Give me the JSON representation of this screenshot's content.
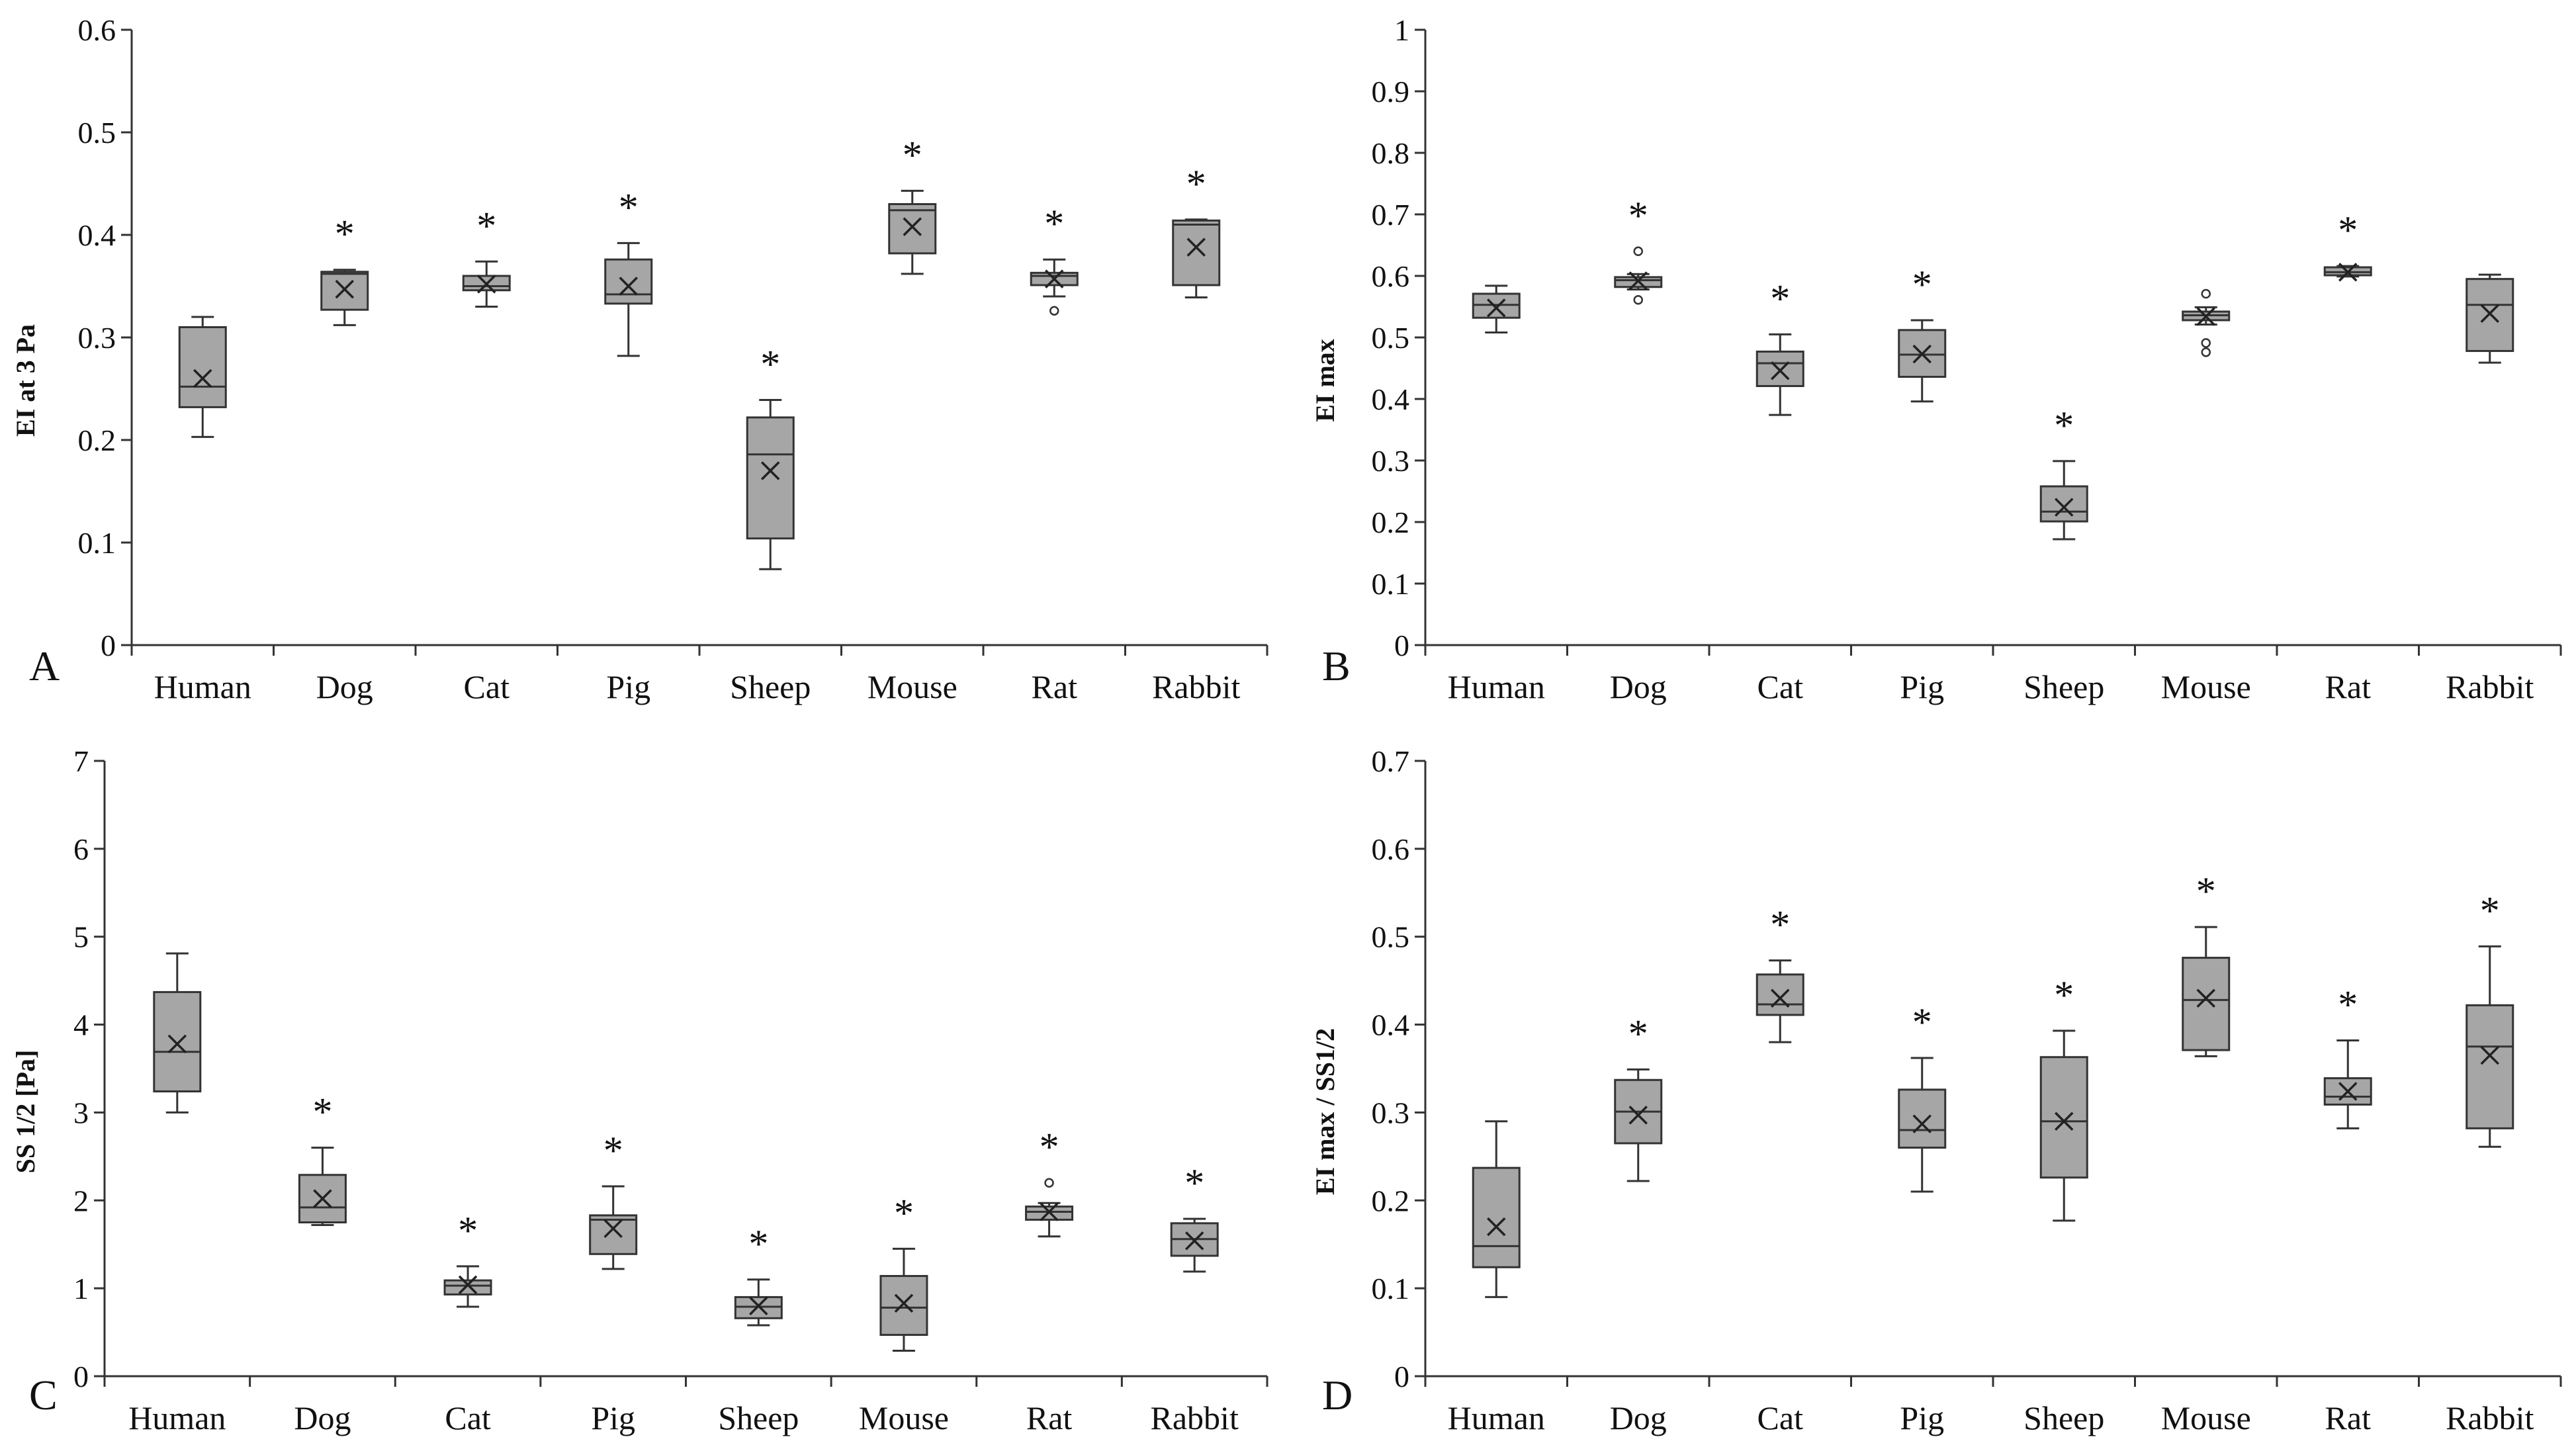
{
  "chart_data": [
    {
      "type": "box",
      "panel": "A",
      "ylabel": "EI at 3 Pa",
      "ylim": [
        0,
        0.6
      ],
      "yticks": [
        0,
        0.1,
        0.2,
        0.3,
        0.4,
        0.5,
        0.6
      ],
      "ytick_labels": [
        "0",
        "0.1",
        "0.2",
        "0.3",
        "0.4",
        "0.5",
        "0.6"
      ],
      "categories": [
        "Human",
        "Dog",
        "Cat",
        "Pig",
        "Sheep",
        "Mouse",
        "Rat",
        "Rabbit"
      ],
      "boxes": [
        {
          "min": 0.203,
          "q1": 0.232,
          "median": 0.252,
          "q3": 0.31,
          "max": 0.32,
          "mean": 0.26,
          "outliers": [],
          "significant": false
        },
        {
          "min": 0.312,
          "q1": 0.327,
          "median": 0.362,
          "q3": 0.364,
          "max": 0.366,
          "mean": 0.347,
          "outliers": [],
          "significant": true
        },
        {
          "min": 0.33,
          "q1": 0.346,
          "median": 0.35,
          "q3": 0.36,
          "max": 0.374,
          "mean": 0.352,
          "outliers": [],
          "significant": true
        },
        {
          "min": 0.282,
          "q1": 0.333,
          "median": 0.342,
          "q3": 0.376,
          "max": 0.392,
          "mean": 0.35,
          "outliers": [],
          "significant": true
        },
        {
          "min": 0.074,
          "q1": 0.104,
          "median": 0.186,
          "q3": 0.222,
          "max": 0.239,
          "mean": 0.17,
          "outliers": [],
          "significant": true
        },
        {
          "min": 0.362,
          "q1": 0.382,
          "median": 0.424,
          "q3": 0.43,
          "max": 0.443,
          "mean": 0.408,
          "outliers": [],
          "significant": true
        },
        {
          "min": 0.34,
          "q1": 0.351,
          "median": 0.36,
          "q3": 0.363,
          "max": 0.376,
          "mean": 0.357,
          "outliers": [
            0.326
          ],
          "significant": true
        },
        {
          "min": 0.339,
          "q1": 0.351,
          "median": 0.41,
          "q3": 0.414,
          "max": 0.415,
          "mean": 0.388,
          "outliers": [],
          "significant": true
        }
      ]
    },
    {
      "type": "box",
      "panel": "B",
      "ylabel": "EI max",
      "ylim": [
        0,
        1
      ],
      "yticks": [
        0,
        0.1,
        0.2,
        0.3,
        0.4,
        0.5,
        0.6,
        0.7,
        0.8,
        0.9,
        1
      ],
      "ytick_labels": [
        "0",
        "0.1",
        "0.2",
        "0.3",
        "0.4",
        "0.5",
        "0.6",
        "0.7",
        "0.8",
        "0.9",
        "1"
      ],
      "categories": [
        "Human",
        "Dog",
        "Cat",
        "Pig",
        "Sheep",
        "Mouse",
        "Rat",
        "Rabbit"
      ],
      "boxes": [
        {
          "min": 0.508,
          "q1": 0.532,
          "median": 0.553,
          "q3": 0.571,
          "max": 0.584,
          "mean": 0.548,
          "outliers": [],
          "significant": false
        },
        {
          "min": 0.578,
          "q1": 0.582,
          "median": 0.593,
          "q3": 0.598,
          "max": 0.603,
          "mean": 0.592,
          "outliers": [
            0.64,
            0.561
          ],
          "significant": true
        },
        {
          "min": 0.374,
          "q1": 0.421,
          "median": 0.458,
          "q3": 0.477,
          "max": 0.505,
          "mean": 0.446,
          "outliers": [],
          "significant": true
        },
        {
          "min": 0.396,
          "q1": 0.436,
          "median": 0.472,
          "q3": 0.512,
          "max": 0.528,
          "mean": 0.473,
          "outliers": [],
          "significant": true
        },
        {
          "min": 0.172,
          "q1": 0.201,
          "median": 0.217,
          "q3": 0.258,
          "max": 0.299,
          "mean": 0.224,
          "outliers": [],
          "significant": true
        },
        {
          "min": 0.521,
          "q1": 0.528,
          "median": 0.536,
          "q3": 0.542,
          "max": 0.549,
          "mean": 0.534,
          "outliers": [
            0.571,
            0.491,
            0.476
          ],
          "significant": false
        },
        {
          "min": 0.599,
          "q1": 0.601,
          "median": 0.606,
          "q3": 0.614,
          "max": 0.616,
          "mean": 0.606,
          "outliers": [],
          "significant": true
        },
        {
          "min": 0.459,
          "q1": 0.478,
          "median": 0.553,
          "q3": 0.595,
          "max": 0.602,
          "mean": 0.539,
          "outliers": [],
          "significant": false
        }
      ]
    },
    {
      "type": "box",
      "panel": "C",
      "ylabel": "SS 1/2 [Pa]",
      "ylim": [
        0,
        7
      ],
      "yticks": [
        0,
        1,
        2,
        3,
        4,
        5,
        6,
        7
      ],
      "ytick_labels": [
        "0",
        "1",
        "2",
        "3",
        "4",
        "5",
        "6",
        "7"
      ],
      "categories": [
        "Human",
        "Dog",
        "Cat",
        "Pig",
        "Sheep",
        "Mouse",
        "Rat",
        "Rabbit"
      ],
      "boxes": [
        {
          "min": 3.0,
          "q1": 3.24,
          "median": 3.69,
          "q3": 4.37,
          "max": 4.81,
          "mean": 3.78,
          "outliers": [],
          "significant": false
        },
        {
          "min": 1.72,
          "q1": 1.75,
          "median": 1.92,
          "q3": 2.29,
          "max": 2.6,
          "mean": 2.02,
          "outliers": [],
          "significant": true
        },
        {
          "min": 0.79,
          "q1": 0.93,
          "median": 1.03,
          "q3": 1.09,
          "max": 1.25,
          "mean": 1.04,
          "outliers": [],
          "significant": true
        },
        {
          "min": 1.22,
          "q1": 1.39,
          "median": 1.78,
          "q3": 1.83,
          "max": 2.16,
          "mean": 1.68,
          "outliers": [],
          "significant": true
        },
        {
          "min": 0.58,
          "q1": 0.66,
          "median": 0.79,
          "q3": 0.9,
          "max": 1.1,
          "mean": 0.8,
          "outliers": [],
          "significant": true
        },
        {
          "min": 0.29,
          "q1": 0.47,
          "median": 0.78,
          "q3": 1.14,
          "max": 1.45,
          "mean": 0.83,
          "outliers": [],
          "significant": true
        },
        {
          "min": 1.59,
          "q1": 1.78,
          "median": 1.87,
          "q3": 1.93,
          "max": 1.97,
          "mean": 1.87,
          "outliers": [
            2.2
          ],
          "significant": true
        },
        {
          "min": 1.19,
          "q1": 1.37,
          "median": 1.56,
          "q3": 1.74,
          "max": 1.79,
          "mean": 1.54,
          "outliers": [],
          "significant": true
        }
      ]
    },
    {
      "type": "box",
      "panel": "D",
      "ylabel": "EI max / SS1/2",
      "ylim": [
        0,
        0.7
      ],
      "yticks": [
        0,
        0.1,
        0.2,
        0.3,
        0.4,
        0.5,
        0.6,
        0.7
      ],
      "ytick_labels": [
        "0",
        "0.1",
        "0.2",
        "0.3",
        "0.4",
        "0.5",
        "0.6",
        "0.7"
      ],
      "categories": [
        "Human",
        "Dog",
        "Cat",
        "Pig",
        "Sheep",
        "Mouse",
        "Rat",
        "Rabbit"
      ],
      "boxes": [
        {
          "min": 0.09,
          "q1": 0.124,
          "median": 0.148,
          "q3": 0.237,
          "max": 0.29,
          "mean": 0.17,
          "outliers": [],
          "significant": false
        },
        {
          "min": 0.222,
          "q1": 0.265,
          "median": 0.301,
          "q3": 0.337,
          "max": 0.349,
          "mean": 0.297,
          "outliers": [],
          "significant": true
        },
        {
          "min": 0.38,
          "q1": 0.411,
          "median": 0.423,
          "q3": 0.457,
          "max": 0.473,
          "mean": 0.43,
          "outliers": [],
          "significant": true
        },
        {
          "min": 0.21,
          "q1": 0.26,
          "median": 0.28,
          "q3": 0.326,
          "max": 0.362,
          "mean": 0.287,
          "outliers": [],
          "significant": true
        },
        {
          "min": 0.177,
          "q1": 0.226,
          "median": 0.29,
          "q3": 0.363,
          "max": 0.393,
          "mean": 0.29,
          "outliers": [],
          "significant": true
        },
        {
          "min": 0.364,
          "q1": 0.371,
          "median": 0.428,
          "q3": 0.476,
          "max": 0.511,
          "mean": 0.43,
          "outliers": [],
          "significant": true
        },
        {
          "min": 0.282,
          "q1": 0.309,
          "median": 0.318,
          "q3": 0.339,
          "max": 0.382,
          "mean": 0.324,
          "outliers": [],
          "significant": true
        },
        {
          "min": 0.261,
          "q1": 0.282,
          "median": 0.375,
          "q3": 0.422,
          "max": 0.489,
          "mean": 0.365,
          "outliers": [],
          "significant": true
        }
      ]
    }
  ],
  "significance_marker": "*"
}
